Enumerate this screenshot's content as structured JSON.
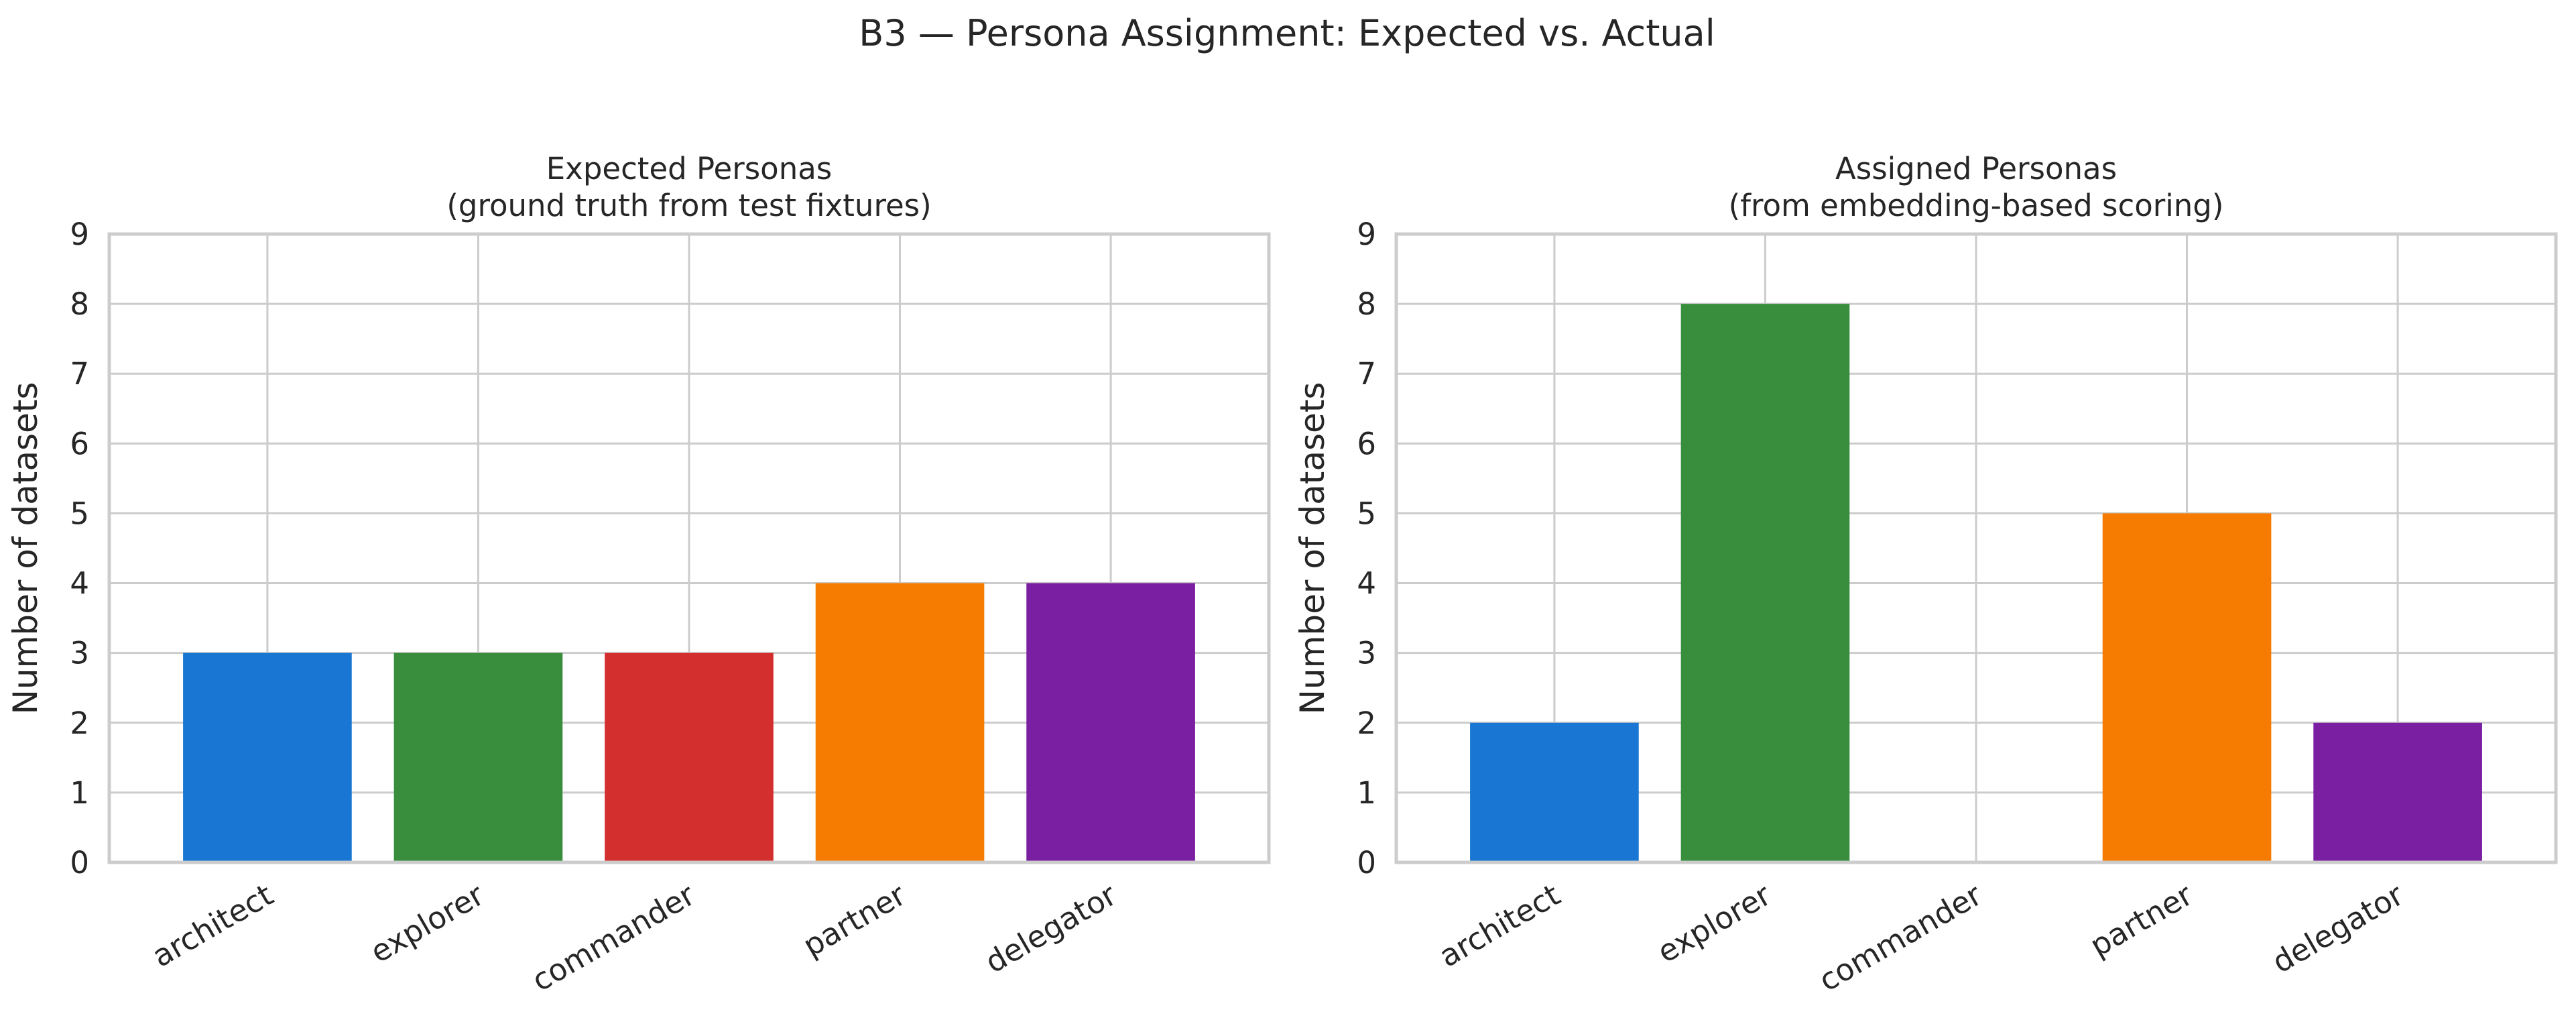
{
  "figure": {
    "suptitle": "B3 — Persona Assignment: Expected vs. Actual"
  },
  "chart_data": [
    {
      "type": "bar",
      "title": "Expected Personas\n(ground truth from test fixtures)",
      "title_lines": [
        "Expected Personas",
        "(ground truth from test fixtures)"
      ],
      "xlabel": "",
      "ylabel": "Number of datasets",
      "categories": [
        "architect",
        "explorer",
        "commander",
        "partner",
        "delegator"
      ],
      "values": [
        3,
        3,
        3,
        4,
        4
      ],
      "colors": [
        "#1976d2",
        "#388e3c",
        "#d32f2f",
        "#f57c00",
        "#7b1fa2"
      ],
      "ylim": [
        0,
        9
      ],
      "yticks": [
        "0",
        "1",
        "2",
        "3",
        "4",
        "5",
        "6",
        "7",
        "8",
        "9"
      ],
      "grid": true
    },
    {
      "type": "bar",
      "title": "Assigned Personas\n(from embedding-based scoring)",
      "title_lines": [
        "Assigned Personas",
        "(from embedding-based scoring)"
      ],
      "xlabel": "",
      "ylabel": "Number of datasets",
      "categories": [
        "architect",
        "explorer",
        "commander",
        "partner",
        "delegator"
      ],
      "values": [
        2,
        8,
        0,
        5,
        2
      ],
      "colors": [
        "#1976d2",
        "#388e3c",
        "#d32f2f",
        "#f57c00",
        "#7b1fa2"
      ],
      "ylim": [
        0,
        9
      ],
      "yticks": [
        "0",
        "1",
        "2",
        "3",
        "4",
        "5",
        "6",
        "7",
        "8",
        "9"
      ],
      "grid": true
    }
  ]
}
